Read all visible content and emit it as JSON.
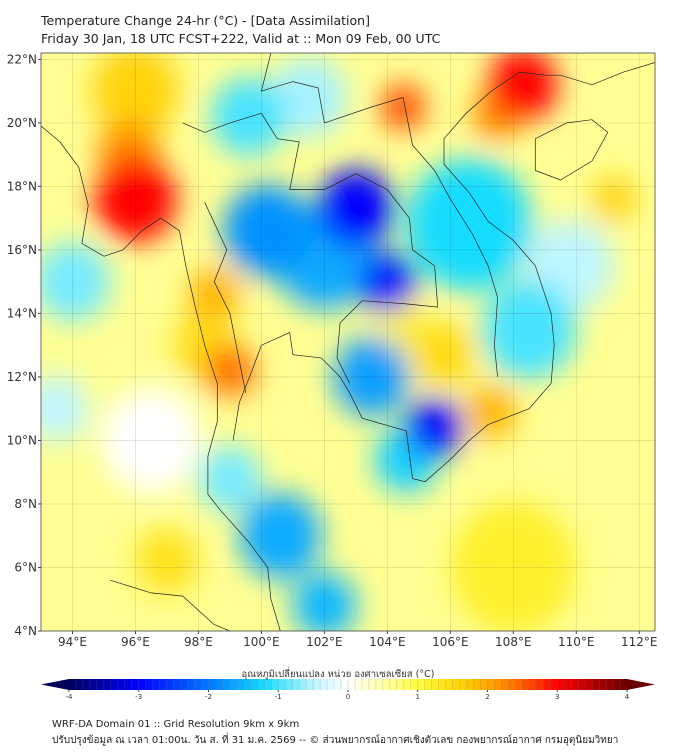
{
  "header": {
    "title": "Temperature Change 24-hr (°C) - [Data Assimilation]",
    "subtitle": "Friday 30 Jan, 18 UTC FCST+222, Valid at :: Mon 09 Feb, 00 UTC"
  },
  "chart_data": {
    "type": "heatmap",
    "variable": "24-hr temperature change",
    "units": "°C",
    "lon_range": [
      93.0,
      112.5
    ],
    "lat_range": [
      4.0,
      22.2
    ],
    "lon_ticks": [
      "94°E",
      "96°E",
      "98°E",
      "100°E",
      "102°E",
      "104°E",
      "106°E",
      "108°E",
      "110°E",
      "112°E"
    ],
    "lon_tick_values": [
      94,
      96,
      98,
      100,
      102,
      104,
      106,
      108,
      110,
      112
    ],
    "lat_ticks": [
      "4°N",
      "6°N",
      "8°N",
      "10°N",
      "12°N",
      "14°N",
      "16°N",
      "18°N",
      "20°N",
      "22°N"
    ],
    "lat_tick_values": [
      4,
      6,
      8,
      10,
      12,
      14,
      16,
      18,
      20,
      22
    ],
    "background_value": 0.6,
    "features": [
      {
        "lon": 96.0,
        "lat": 17.6,
        "value": 3.0,
        "r": 1.3
      },
      {
        "lon": 95.8,
        "lat": 19.0,
        "value": 2.2,
        "r": 1.0
      },
      {
        "lon": 96.0,
        "lat": 21.0,
        "value": 1.6,
        "r": 1.4
      },
      {
        "lon": 104.5,
        "lat": 20.5,
        "value": 2.6,
        "r": 0.7
      },
      {
        "lon": 108.3,
        "lat": 21.2,
        "value": 3.0,
        "r": 1.1
      },
      {
        "lon": 107.5,
        "lat": 20.3,
        "value": 2.2,
        "r": 0.8
      },
      {
        "lon": 98.5,
        "lat": 14.6,
        "value": 1.9,
        "r": 0.8
      },
      {
        "lon": 99.0,
        "lat": 12.2,
        "value": 2.4,
        "r": 0.8
      },
      {
        "lon": 98.2,
        "lat": 13.0,
        "value": 1.5,
        "r": 1.0
      },
      {
        "lon": 107.3,
        "lat": 10.9,
        "value": 1.9,
        "r": 0.8
      },
      {
        "lon": 105.8,
        "lat": 12.7,
        "value": 1.5,
        "r": 1.0
      },
      {
        "lon": 104.6,
        "lat": 13.6,
        "value": 1.2,
        "r": 0.7
      },
      {
        "lon": 111.2,
        "lat": 17.6,
        "value": 1.6,
        "r": 0.7
      },
      {
        "lon": 97.0,
        "lat": 6.2,
        "value": 1.4,
        "r": 1.0
      },
      {
        "lon": 108.0,
        "lat": 6.0,
        "value": 1.2,
        "r": 2.0
      },
      {
        "lon": 94.0,
        "lat": 15.0,
        "value": -0.8,
        "r": 1.2
      },
      {
        "lon": 93.5,
        "lat": 11.0,
        "value": -0.5,
        "r": 1.0
      },
      {
        "lon": 96.5,
        "lat": 10.0,
        "value": 0.0,
        "r": 1.6
      },
      {
        "lon": 99.6,
        "lat": 20.2,
        "value": -1.0,
        "r": 1.2
      },
      {
        "lon": 101.5,
        "lat": 20.8,
        "value": -0.6,
        "r": 1.2
      },
      {
        "lon": 106.6,
        "lat": 16.8,
        "value": -1.2,
        "r": 2.0
      },
      {
        "lon": 108.5,
        "lat": 13.5,
        "value": -1.0,
        "r": 1.5
      },
      {
        "lon": 109.8,
        "lat": 15.5,
        "value": -0.5,
        "r": 1.4
      },
      {
        "lon": 100.2,
        "lat": 16.6,
        "value": -1.8,
        "r": 1.4
      },
      {
        "lon": 102.0,
        "lat": 15.8,
        "value": -1.6,
        "r": 1.6
      },
      {
        "lon": 103.0,
        "lat": 17.3,
        "value": -3.0,
        "r": 1.2
      },
      {
        "lon": 104.0,
        "lat": 15.0,
        "value": -2.8,
        "r": 0.9
      },
      {
        "lon": 103.5,
        "lat": 12.0,
        "value": -1.7,
        "r": 1.2
      },
      {
        "lon": 105.5,
        "lat": 10.4,
        "value": -3.0,
        "r": 0.9
      },
      {
        "lon": 104.6,
        "lat": 9.4,
        "value": -1.3,
        "r": 1.0
      },
      {
        "lon": 100.6,
        "lat": 7.0,
        "value": -1.6,
        "r": 1.3
      },
      {
        "lon": 102.0,
        "lat": 4.8,
        "value": -1.5,
        "r": 1.0
      },
      {
        "lon": 99.0,
        "lat": 8.8,
        "value": -0.8,
        "r": 1.0
      }
    ]
  },
  "colorbar": {
    "label": "อุณหภูมิเปลี่ยนแปลง หน่วย องศาเซลเซียส (°C)",
    "ticks": [
      "-4",
      "-3",
      "-2",
      "-1",
      "0",
      "1",
      "2",
      "3",
      "4"
    ],
    "tick_values": [
      -4,
      -3,
      -2,
      -1,
      0,
      1,
      2,
      3,
      4
    ],
    "range": [
      -4,
      4
    ],
    "colors": {
      "-4": "#00005a",
      "-3": "#0000ff",
      "-2": "#0078ff",
      "-1.2": "#18dcff",
      "-0.5": "#bff6ff",
      "0": "#ffffff",
      "0.5": "#ffffa8",
      "1": "#ffff40",
      "1.7": "#ffcc00",
      "2.3": "#ff8000",
      "3": "#ff0000",
      "4": "#6a0000"
    }
  },
  "footer": {
    "line1": "WRF-DA Domain 01 :: Grid Resolution 9km x 9km",
    "line2": "ปรับปรุงข้อมูล ณ เวลา 01:00น. วัน ส. ที่ 31 ม.ค. 2569 -- © ส่วนพยากรณ์อากาศเชิงตัวเลข กองพยากรณ์อากาศ กรมอุตุนิยมวิทยา"
  }
}
